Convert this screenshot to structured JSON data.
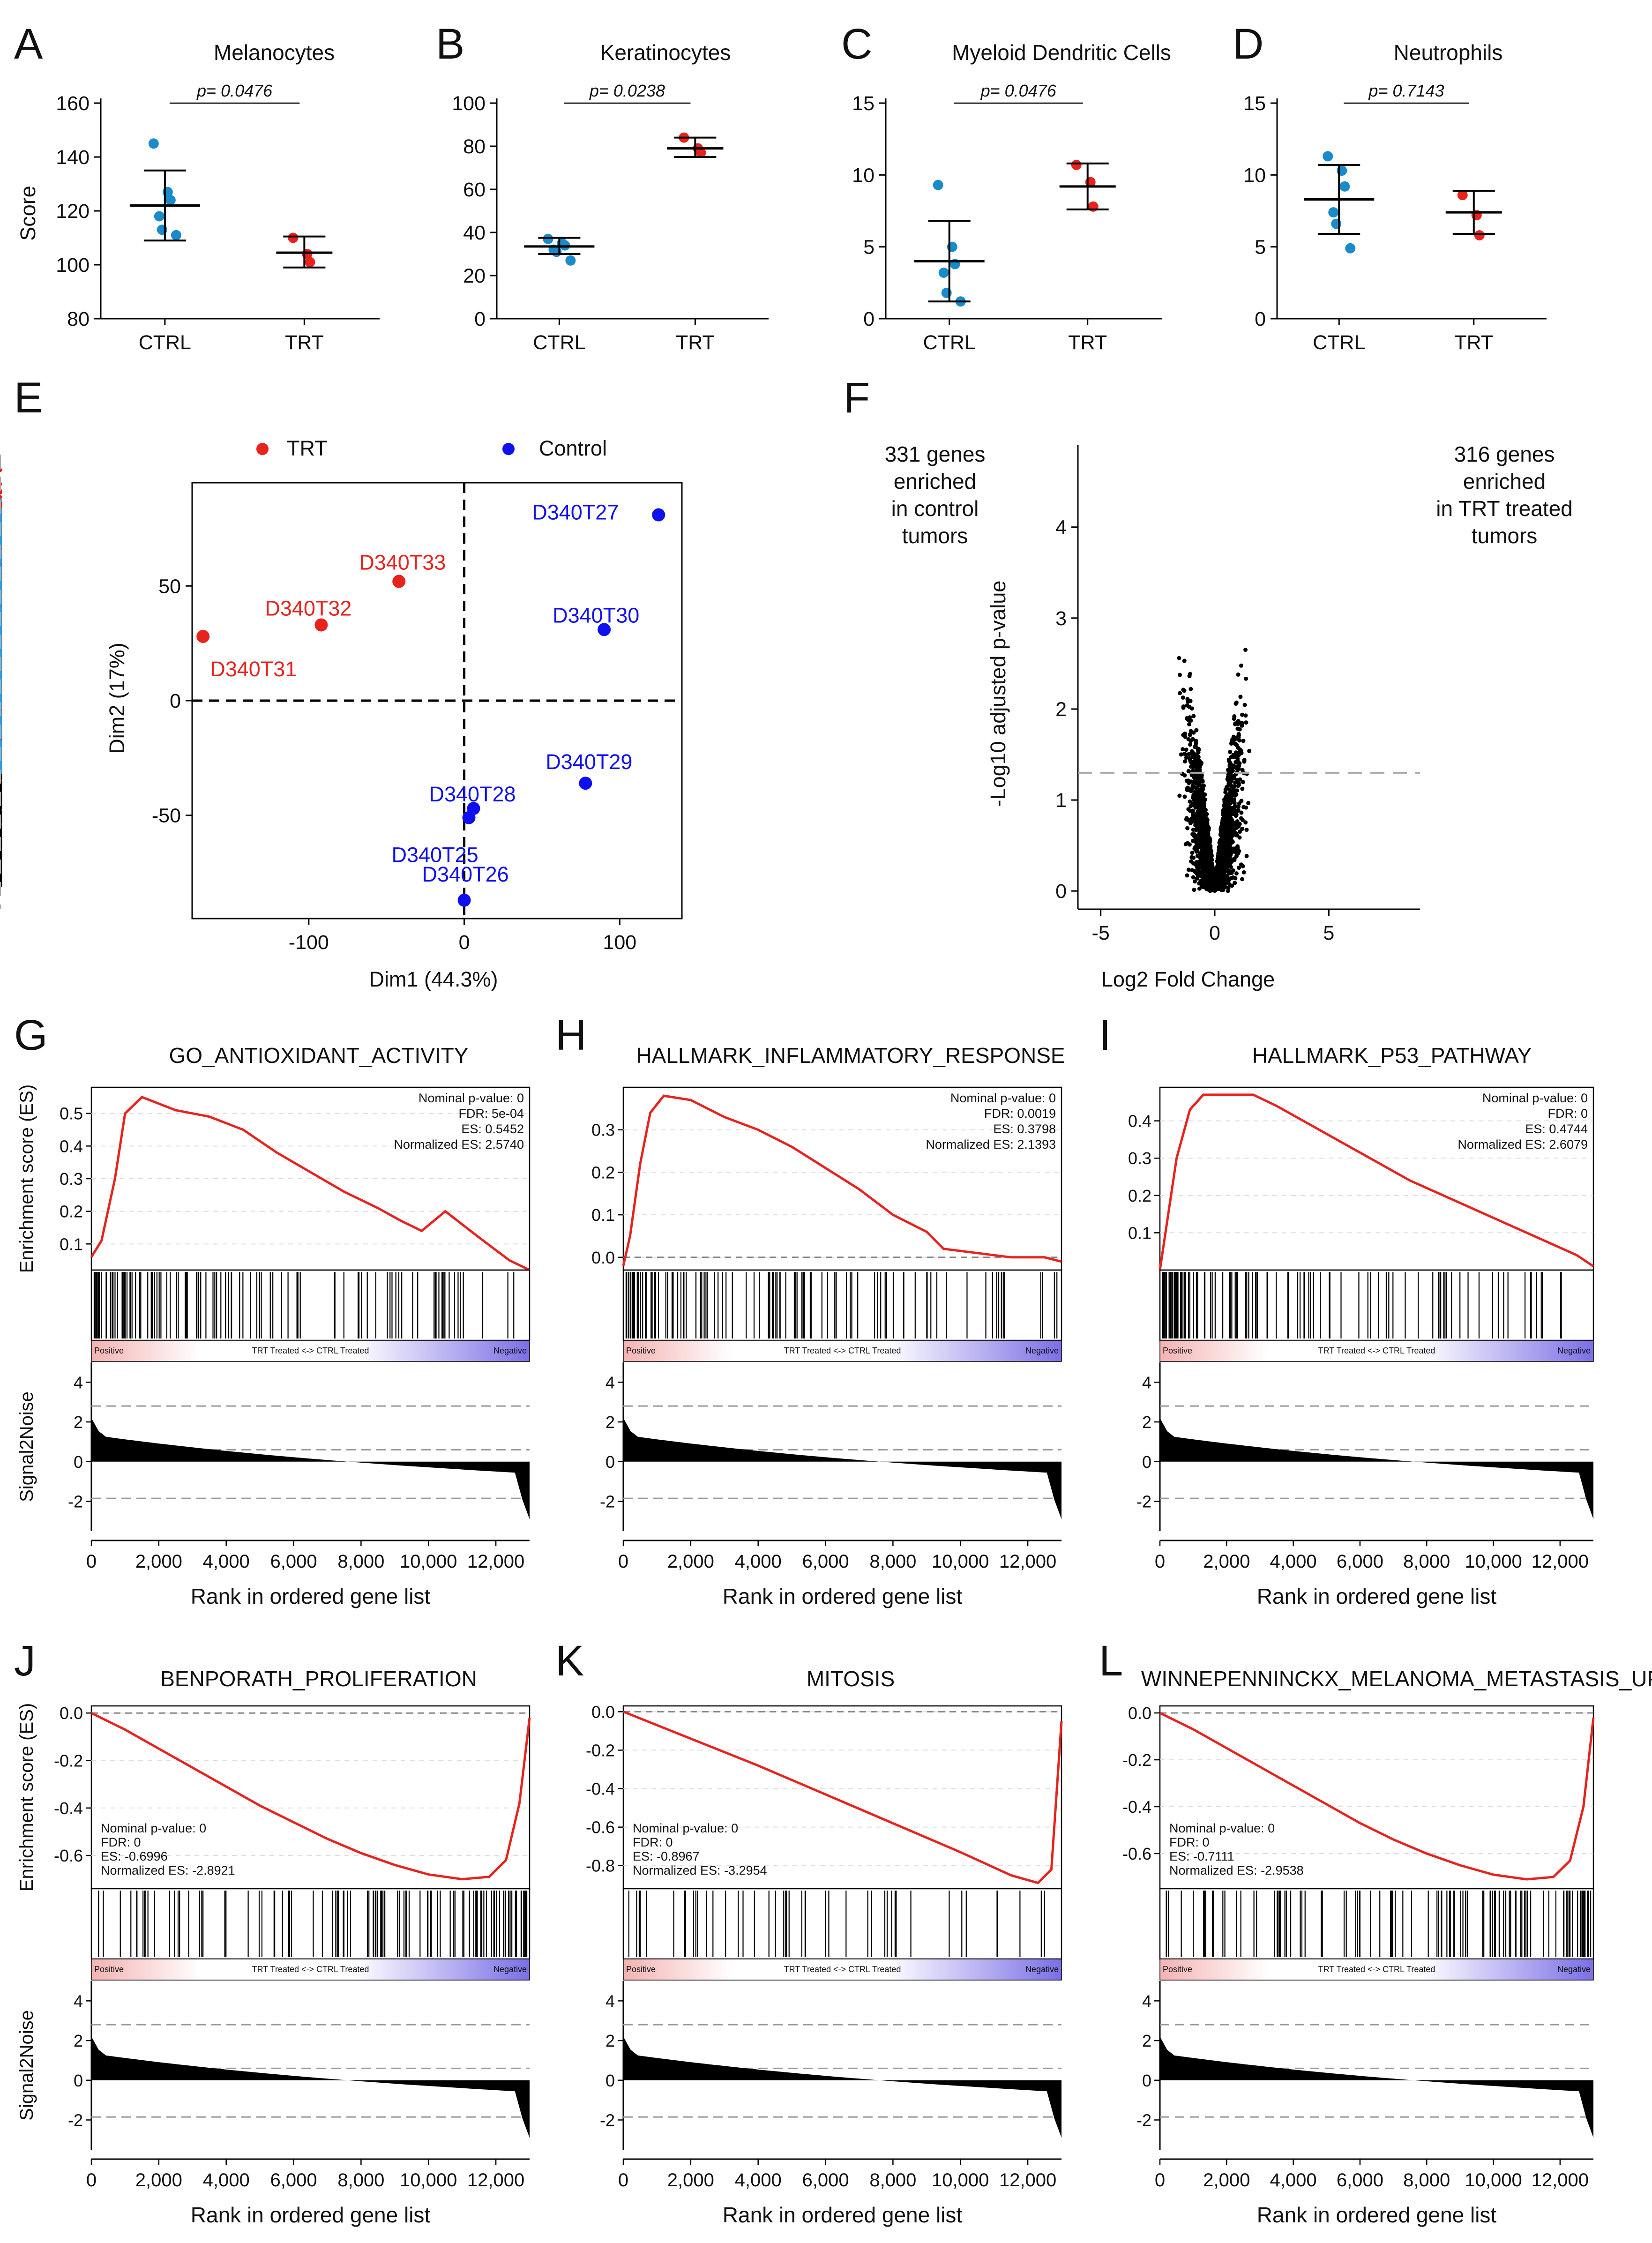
{
  "panels": {
    "A": {
      "letter": "A",
      "title": "Melanocytes",
      "pval": "p= 0.0476",
      "ylabel": "Score"
    },
    "B": {
      "letter": "B",
      "title": "Keratinocytes",
      "pval": "p= 0.0238"
    },
    "C": {
      "letter": "C",
      "title": "Myeloid Dendritic Cells",
      "pval": "p= 0.0476"
    },
    "D": {
      "letter": "D",
      "title": "Neutrophils",
      "pval": "p= 0.7143"
    },
    "E": {
      "letter": "E",
      "xlabel": "Dim1 (44.3%)",
      "ylabel": "Dim2 (17%)",
      "legend_trt": "TRT",
      "legend_ctrl": "Control"
    },
    "F": {
      "letter": "F",
      "xlabel": "Log2 Fold Change",
      "ylabel": "-Log10 adjusted p-value",
      "left_note": [
        "331 genes",
        "enriched",
        "in control",
        "tumors"
      ],
      "right_note": [
        "316 genes",
        "enriched",
        "in TRT treated",
        "tumors"
      ]
    },
    "G": {
      "letter": "G",
      "title": "GO_ANTIOXIDANT_ACTIVITY"
    },
    "H": {
      "letter": "H",
      "title": "HALLMARK_INFLAMMATORY_RESPONSE"
    },
    "I": {
      "letter": "I",
      "title": "HALLMARK_P53_PATHWAY"
    },
    "J": {
      "letter": "J",
      "title": "BENPORATH_PROLIFERATION"
    },
    "K": {
      "letter": "K",
      "title": "MITOSIS"
    },
    "L": {
      "letter": "L",
      "title": "WINNEPENNINCKX_MELANOMA_METASTASIS_UP"
    }
  },
  "gsea_labels": {
    "es_ylabel": "Enrichment score (ES)",
    "s2n_ylabel": "Signal2Noise",
    "xlabel": "Rank in ordered gene list",
    "positive": "Positive",
    "negative": "Negative",
    "middle": "TRT Treated <-> CTRL Treated"
  },
  "colors": {
    "trt": "#e8221d",
    "ctrl": "#1a8bc8",
    "pca_ctrl": "#1010ee",
    "volcano_up": "#e8221d",
    "volcano_down": "#2f9be0",
    "es_line": "#e8221d"
  },
  "chart_data": [
    {
      "type": "scatter",
      "panel": "A",
      "title": "Melanocytes",
      "ylabel": "Score",
      "categories": [
        "CTRL",
        "TRT"
      ],
      "ylim": [
        80,
        160
      ],
      "yticks": [
        80,
        100,
        120,
        140,
        160
      ],
      "groups": [
        {
          "name": "CTRL",
          "points": [
            145,
            127,
            124,
            118,
            113,
            111
          ],
          "mean": 122,
          "sd_low": 109,
          "sd_high": 135
        },
        {
          "name": "TRT",
          "points": [
            110,
            104,
            101
          ],
          "mean": 104.5,
          "sd_low": 99,
          "sd_high": 110.5
        }
      ],
      "annotation": "p= 0.0476"
    },
    {
      "type": "scatter",
      "panel": "B",
      "title": "Keratinocytes",
      "categories": [
        "CTRL",
        "TRT"
      ],
      "ylim": [
        0,
        100
      ],
      "yticks": [
        0,
        20,
        40,
        60,
        80,
        100
      ],
      "groups": [
        {
          "name": "CTRL",
          "points": [
            37,
            35,
            34,
            32,
            31,
            27
          ],
          "mean": 33.5,
          "sd_low": 30,
          "sd_high": 37.5
        },
        {
          "name": "TRT",
          "points": [
            84,
            79,
            77
          ],
          "mean": 79,
          "sd_low": 75,
          "sd_high": 84
        }
      ],
      "annotation": "p= 0.0238"
    },
    {
      "type": "scatter",
      "panel": "C",
      "title": "Myeloid Dendritic Cells",
      "categories": [
        "CTRL",
        "TRT"
      ],
      "ylim": [
        0,
        15
      ],
      "yticks": [
        0,
        5,
        10,
        15
      ],
      "groups": [
        {
          "name": "CTRL",
          "points": [
            9.3,
            5,
            3.8,
            3.2,
            1.8,
            1.2
          ],
          "mean": 4,
          "sd_low": 1.2,
          "sd_high": 6.8
        },
        {
          "name": "TRT",
          "points": [
            10.7,
            9.5,
            7.8
          ],
          "mean": 9.2,
          "sd_low": 7.6,
          "sd_high": 10.8
        }
      ],
      "annotation": "p= 0.0476"
    },
    {
      "type": "scatter",
      "panel": "D",
      "title": "Neutrophils",
      "categories": [
        "CTRL",
        "TRT"
      ],
      "ylim": [
        0,
        15
      ],
      "yticks": [
        0,
        5,
        10,
        15
      ],
      "groups": [
        {
          "name": "CTRL",
          "points": [
            11.3,
            10.3,
            9.2,
            7.4,
            6.6,
            4.9
          ],
          "mean": 8.3,
          "sd_low": 5.9,
          "sd_high": 10.7
        },
        {
          "name": "TRT",
          "points": [
            8.6,
            7.2,
            5.8
          ],
          "mean": 7.4,
          "sd_low": 5.9,
          "sd_high": 8.9
        }
      ],
      "annotation": "p= 0.7143"
    },
    {
      "type": "scatter",
      "panel": "E",
      "xlabel": "Dim1 (44.3%)",
      "ylabel": "Dim2 (17%)",
      "xlim": [
        -175,
        140
      ],
      "ylim": [
        -95,
        95
      ],
      "xticks": [
        -100,
        0,
        100
      ],
      "yticks": [
        -50,
        0,
        50
      ],
      "series": [
        {
          "name": "TRT",
          "points": [
            {
              "label": "D340T31",
              "x": -168,
              "y": 28
            },
            {
              "label": "D340T32",
              "x": -92,
              "y": 33
            },
            {
              "label": "D340T33",
              "x": -42,
              "y": 52
            }
          ]
        },
        {
          "name": "Control",
          "points": [
            {
              "label": "D340T27",
              "x": 125,
              "y": 81
            },
            {
              "label": "D340T30",
              "x": 90,
              "y": 31
            },
            {
              "label": "D340T29",
              "x": 78,
              "y": -36
            },
            {
              "label": "D340T28",
              "x": 6,
              "y": -47
            },
            {
              "label": "D340T25",
              "x": 3,
              "y": -51
            },
            {
              "label": "D340T26",
              "x": 0,
              "y": -87
            }
          ]
        }
      ]
    },
    {
      "type": "scatter",
      "panel": "F",
      "subtype": "volcano",
      "xlabel": "Log2 Fold Change",
      "ylabel": "-Log10 adjusted p-value",
      "xlim": [
        -6,
        9
      ],
      "ylim": [
        -0.2,
        4.9
      ],
      "xticks": [
        -5,
        0,
        5
      ],
      "yticks": [
        0,
        1,
        2,
        3,
        4
      ],
      "thresholds": {
        "log2fc": [
          -2,
          2
        ],
        "neglog10p": 1.3
      },
      "counts": {
        "down": 331,
        "up": 316
      }
    },
    {
      "type": "line",
      "panel": "G",
      "title": "GO_ANTIOXIDANT_ACTIVITY",
      "xlabel": "Rank in ordered gene list",
      "ylabel": "Enrichment score (ES)",
      "xlim": [
        0,
        13000
      ],
      "ylim": [
        0.02,
        0.58
      ],
      "yticks": [
        0.1,
        0.2,
        0.3,
        0.4,
        0.5
      ],
      "xticks": [
        0,
        2000,
        4000,
        6000,
        8000,
        10000,
        12000
      ],
      "x": [
        0,
        300,
        700,
        1000,
        1500,
        2500,
        3500,
        4500,
        5500,
        6500,
        7500,
        8500,
        9200,
        9800,
        10500,
        11500,
        12400,
        13000
      ],
      "y": [
        0.06,
        0.11,
        0.3,
        0.5,
        0.55,
        0.51,
        0.49,
        0.45,
        0.38,
        0.32,
        0.26,
        0.21,
        0.17,
        0.14,
        0.2,
        0.12,
        0.05,
        0.02
      ],
      "stats": [
        "Nominal p-value: 0",
        "FDR: 5e-04",
        "ES: 0.5452",
        "Normalized ES: 2.5740"
      ]
    },
    {
      "type": "line",
      "panel": "H",
      "title": "HALLMARK_INFLAMMATORY_RESPONSE",
      "xlabel": "Rank in ordered gene list",
      "ylabel": "Enrichment score (ES)",
      "xlim": [
        0,
        13000
      ],
      "ylim": [
        -0.03,
        0.4
      ],
      "yticks": [
        0.0,
        0.1,
        0.2,
        0.3
      ],
      "xticks": [
        0,
        2000,
        4000,
        6000,
        8000,
        10000,
        12000
      ],
      "x": [
        0,
        200,
        500,
        800,
        1200,
        2000,
        3000,
        4000,
        5000,
        6000,
        7000,
        8000,
        9000,
        9500,
        10500,
        11500,
        12500,
        13000
      ],
      "y": [
        -0.02,
        0.05,
        0.22,
        0.34,
        0.38,
        0.37,
        0.33,
        0.3,
        0.26,
        0.21,
        0.16,
        0.1,
        0.06,
        0.02,
        0.01,
        0.0,
        0.0,
        -0.01
      ],
      "stats": [
        "Nominal p-value: 0",
        "FDR: 0.0019",
        "ES: 0.3798",
        "Normalized ES: 2.1393"
      ]
    },
    {
      "type": "line",
      "panel": "I",
      "title": "HALLMARK_P53_PATHWAY",
      "xlabel": "Rank in ordered gene list",
      "ylabel": "Enrichment score (ES)",
      "xlim": [
        0,
        13000
      ],
      "ylim": [
        0.0,
        0.49
      ],
      "yticks": [
        0.1,
        0.2,
        0.3,
        0.4
      ],
      "xticks": [
        0,
        2000,
        4000,
        6000,
        8000,
        10000,
        12000
      ],
      "x": [
        0,
        200,
        500,
        900,
        1300,
        2000,
        2800,
        3500,
        4500,
        5500,
        6500,
        7500,
        8500,
        9500,
        10500,
        11500,
        12500,
        13000
      ],
      "y": [
        0.0,
        0.12,
        0.3,
        0.43,
        0.47,
        0.47,
        0.47,
        0.44,
        0.39,
        0.34,
        0.29,
        0.24,
        0.2,
        0.16,
        0.12,
        0.08,
        0.04,
        0.01
      ],
      "stats": [
        "Nominal p-value: 0",
        "FDR: 0",
        "ES: 0.4744",
        "Normalized ES: 2.6079"
      ]
    },
    {
      "type": "line",
      "panel": "J",
      "title": "BENPORATH_PROLIFERATION",
      "xlabel": "Rank in ordered gene list",
      "ylabel": "Enrichment score (ES)",
      "xlim": [
        0,
        13000
      ],
      "ylim": [
        -0.74,
        0.03
      ],
      "yticks": [
        0.0,
        -0.2,
        -0.4,
        -0.6
      ],
      "xticks": [
        0,
        2000,
        4000,
        6000,
        8000,
        10000,
        12000
      ],
      "x": [
        0,
        1000,
        2000,
        3000,
        4000,
        5000,
        6000,
        7000,
        8000,
        9000,
        10000,
        11000,
        11800,
        12300,
        12700,
        13000
      ],
      "y": [
        0.0,
        -0.07,
        -0.15,
        -0.23,
        -0.31,
        -0.39,
        -0.46,
        -0.53,
        -0.59,
        -0.64,
        -0.68,
        -0.7,
        -0.69,
        -0.62,
        -0.38,
        -0.02
      ],
      "stats": [
        "Nominal p-value: 0",
        "FDR: 0",
        "ES: -0.6996",
        "Normalized ES: -2.8921"
      ]
    },
    {
      "type": "line",
      "panel": "K",
      "title": "MITOSIS",
      "xlabel": "Rank in ordered gene list",
      "ylabel": "Enrichment score (ES)",
      "xlim": [
        0,
        13000
      ],
      "ylim": [
        -0.92,
        0.03
      ],
      "yticks": [
        0.0,
        -0.2,
        -0.4,
        -0.6,
        -0.8
      ],
      "xticks": [
        0,
        2000,
        4000,
        6000,
        8000,
        10000,
        12000
      ],
      "x": [
        0,
        2000,
        4000,
        6000,
        8000,
        10000,
        11500,
        12300,
        12700,
        13000
      ],
      "y": [
        0.0,
        -0.14,
        -0.28,
        -0.43,
        -0.58,
        -0.73,
        -0.85,
        -0.89,
        -0.82,
        -0.05
      ],
      "stats": [
        "Nominal p-value: 0",
        "FDR: 0",
        "ES: -0.8967",
        "Normalized ES: -3.2954"
      ]
    },
    {
      "type": "line",
      "panel": "L",
      "title": "WINNEPENNINCKX_MELANOMA_METASTASIS_UP",
      "xlabel": "Rank in ordered gene list",
      "ylabel": "Enrichment score (ES)",
      "xlim": [
        0,
        13000
      ],
      "ylim": [
        -0.75,
        0.03
      ],
      "yticks": [
        0.0,
        -0.2,
        -0.4,
        -0.6
      ],
      "xticks": [
        0,
        2000,
        4000,
        6000,
        8000,
        10000,
        12000
      ],
      "x": [
        0,
        1000,
        2000,
        3000,
        4000,
        5000,
        6000,
        7000,
        8000,
        9000,
        10000,
        11000,
        11800,
        12300,
        12700,
        13000
      ],
      "y": [
        0.0,
        -0.07,
        -0.15,
        -0.23,
        -0.31,
        -0.39,
        -0.47,
        -0.54,
        -0.6,
        -0.65,
        -0.69,
        -0.71,
        -0.7,
        -0.63,
        -0.4,
        -0.02
      ],
      "stats": [
        "Nominal p-value: 0",
        "FDR: 0",
        "ES: -0.7111",
        "Normalized ES: -2.9538"
      ]
    }
  ]
}
